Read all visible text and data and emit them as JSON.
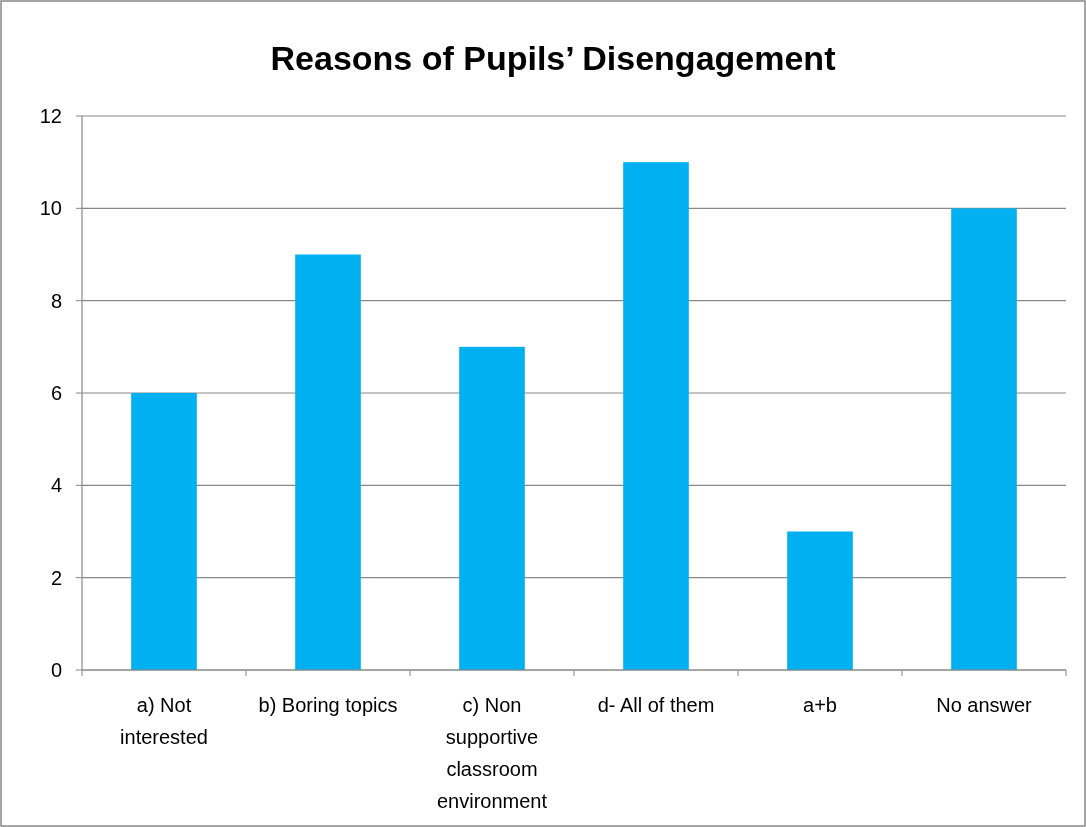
{
  "chart_data": {
    "type": "bar",
    "title": "Reasons of Pupils’ Disengagement",
    "categories": [
      "a)  Not interested",
      "b)  Boring topics",
      "c)  Non supportive classroom environment",
      "d- All of them",
      "a+b",
      "No answer"
    ],
    "values": [
      6,
      9,
      7,
      11,
      3,
      10
    ],
    "color": "#00b0f0",
    "ylim": [
      0,
      12
    ],
    "yticks": [
      0,
      2,
      4,
      6,
      8,
      10,
      12
    ],
    "grid": "y"
  }
}
